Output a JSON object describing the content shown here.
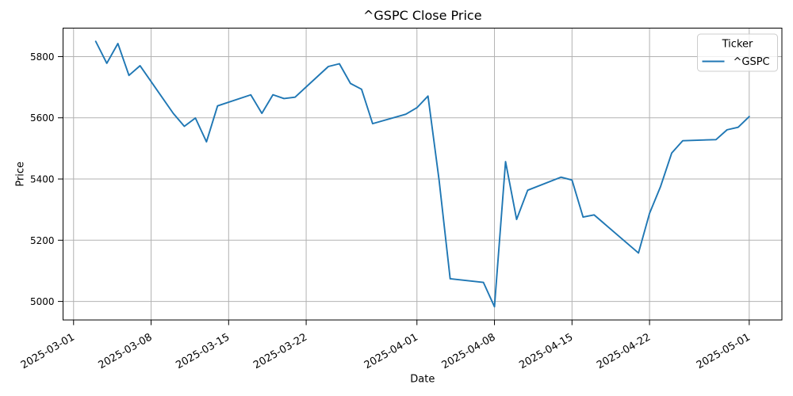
{
  "figure": {
    "title": "^GSPC Close Price",
    "xlabel": "Date",
    "ylabel": "Price"
  },
  "legend": {
    "title": "Ticker",
    "entries": [
      {
        "label": "^GSPC",
        "color": "#1f77b4"
      }
    ]
  },
  "chart_data": {
    "type": "line",
    "title": "^GSPC Close Price",
    "xlabel": "Date",
    "ylabel": "Price",
    "grid": true,
    "legend_position": "upper right",
    "x_margin_frac": 0.05,
    "y_margin_frac": 0.05,
    "ylim": [
      4939.4,
      5893.1
    ],
    "xlim_dates": [
      "2025-02-28",
      "2025-05-04"
    ],
    "yticks": [
      5000,
      5200,
      5400,
      5600,
      5800
    ],
    "xticks": [
      "2025-03-01",
      "2025-03-08",
      "2025-03-15",
      "2025-03-22",
      "2025-04-01",
      "2025-04-08",
      "2025-04-15",
      "2025-04-22",
      "2025-05-01"
    ],
    "x": [
      "2025-03-03",
      "2025-03-04",
      "2025-03-05",
      "2025-03-06",
      "2025-03-07",
      "2025-03-10",
      "2025-03-11",
      "2025-03-12",
      "2025-03-13",
      "2025-03-14",
      "2025-03-17",
      "2025-03-18",
      "2025-03-19",
      "2025-03-20",
      "2025-03-21",
      "2025-03-24",
      "2025-03-25",
      "2025-03-26",
      "2025-03-27",
      "2025-03-28",
      "2025-03-31",
      "2025-04-01",
      "2025-04-02",
      "2025-04-03",
      "2025-04-04",
      "2025-04-07",
      "2025-04-08",
      "2025-04-09",
      "2025-04-10",
      "2025-04-11",
      "2025-04-14",
      "2025-04-15",
      "2025-04-16",
      "2025-04-17",
      "2025-04-21",
      "2025-04-22",
      "2025-04-23",
      "2025-04-24",
      "2025-04-25",
      "2025-04-28",
      "2025-04-29",
      "2025-04-30",
      "2025-05-01"
    ],
    "series": [
      {
        "name": "^GSPC",
        "color": "#1f77b4",
        "values": [
          5849.72,
          5778.15,
          5842.63,
          5738.52,
          5770.2,
          5614.56,
          5572.07,
          5599.3,
          5521.52,
          5638.94,
          5675.12,
          5614.66,
          5675.29,
          5662.89,
          5667.56,
          5767.57,
          5776.65,
          5712.2,
          5693.31,
          5580.94,
          5611.85,
          5633.07,
          5670.97,
          5396.52,
          5074.08,
          5062.25,
          4982.77,
          5456.9,
          5268.05,
          5363.36,
          5405.97,
          5396.63,
          5275.7,
          5282.7,
          5158.2,
          5287.76,
          5375.86,
          5484.77,
          5525.21,
          5528.75,
          5560.83,
          5569.06,
          5604.14
        ]
      }
    ],
    "colors": {
      "line": "#1f77b4",
      "grid": "#b2b2b2",
      "spine": "#000000",
      "legend_edge": "#cccccc"
    }
  }
}
